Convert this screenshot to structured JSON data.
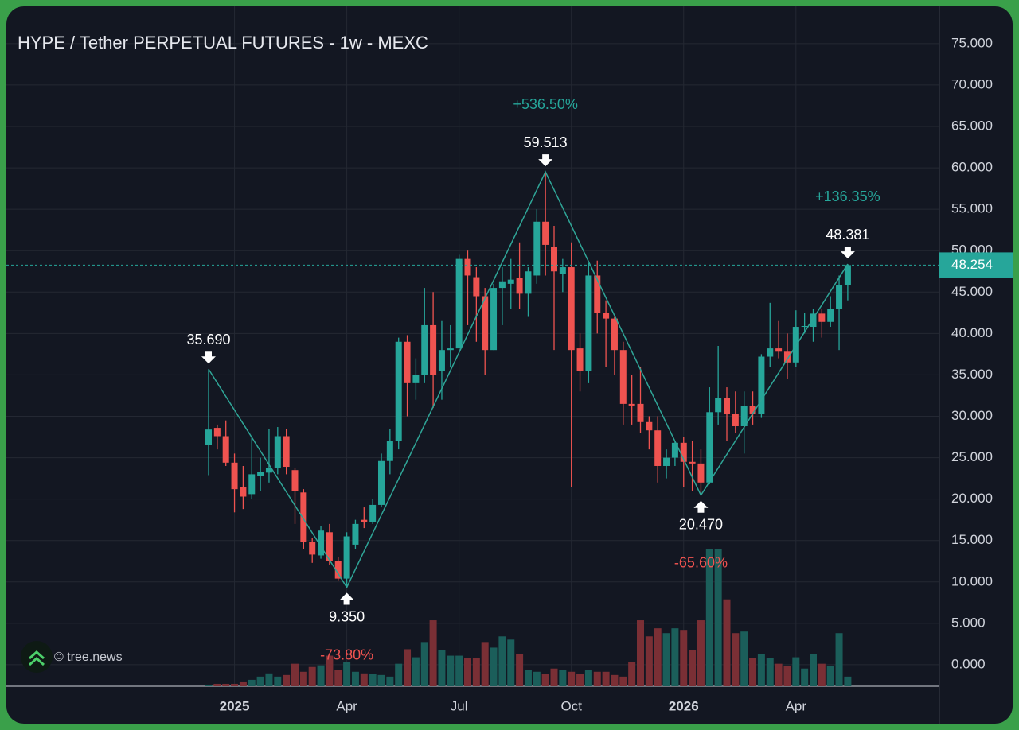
{
  "chart_data": {
    "type": "candlestick",
    "title": "HYPE / Tether PERPETUAL FUTURES - 1w - MEXC",
    "watermark": "© tree.news",
    "categories": [
      null,
      null,
      null,
      "2025",
      null,
      null,
      null,
      null,
      null,
      null,
      null,
      null,
      null,
      null,
      null,
      null,
      "Apr",
      null,
      null,
      null,
      null,
      null,
      null,
      null,
      null,
      null,
      null,
      null,
      null,
      "Jul",
      null,
      null,
      null,
      null,
      null,
      null,
      null,
      null,
      null,
      null,
      null,
      null,
      "Oct",
      null,
      null,
      null,
      null,
      null,
      null,
      null,
      null,
      null,
      null,
      null,
      null,
      "2026",
      null,
      null,
      null,
      null,
      null,
      null,
      null,
      null,
      null,
      null,
      null,
      null,
      "Apr",
      null,
      null,
      null,
      null,
      null,
      null
    ],
    "bold_categories": [
      "2025",
      "2026"
    ],
    "open": [
      26.5,
      28.6,
      27.6,
      24.4,
      21.5,
      20.6,
      22.8,
      23.2,
      23.8,
      27.6,
      23.5,
      20.8,
      14.8,
      13.2,
      16.0,
      12.5,
      10.4,
      14.5,
      17.5,
      17.2,
      19.3,
      24.6,
      27.0,
      39.0,
      34.0,
      35.0,
      41.0,
      35.5,
      38.0,
      38.2,
      49.0,
      46.8,
      44.5,
      38.0,
      45.5,
      46.0,
      46.7,
      44.8,
      47.0,
      53.5,
      50.5,
      47.2,
      48.0,
      38.2,
      35.5,
      47.0,
      42.5,
      41.8,
      38.0,
      31.5,
      31.5,
      29.3,
      28.3,
      24.0,
      25.0,
      26.8,
      24.5,
      24.3,
      22.0,
      30.5,
      32.2,
      30.3,
      28.8,
      31.2,
      30.3,
      37.2,
      38.2,
      37.8,
      36.5,
      40.8,
      40.8,
      42.4,
      41.4,
      43.0,
      45.8
    ],
    "high": [
      35.69,
      29.0,
      29.5,
      25.5,
      24.0,
      27.5,
      25.0,
      28.5,
      28.7,
      28.5,
      23.8,
      21.2,
      15.3,
      16.7,
      17.0,
      13.0,
      16.0,
      17.5,
      19.0,
      20.0,
      25.5,
      28.5,
      39.5,
      39.8,
      37.0,
      45.5,
      45.0,
      41.5,
      41.0,
      49.5,
      50.0,
      48.0,
      45.5,
      46.0,
      48.0,
      49.0,
      51.0,
      48.0,
      55.0,
      59.513,
      53.0,
      49.0,
      51.0,
      40.0,
      48.5,
      48.8,
      44.0,
      42.0,
      39.0,
      35.0,
      36.0,
      30.0,
      30.0,
      26.0,
      27.0,
      27.5,
      27.0,
      26.0,
      33.5,
      38.5,
      33.5,
      33.0,
      33.0,
      33.0,
      37.5,
      43.7,
      41.5,
      40.0,
      42.8,
      42.5,
      43.0,
      43.0,
      44.5,
      47.0,
      48.381
    ],
    "low": [
      22.9,
      26.0,
      24.0,
      18.4,
      18.8,
      20.0,
      21.0,
      22.0,
      23.0,
      23.0,
      17.0,
      14.0,
      12.3,
      12.8,
      12.0,
      10.2,
      9.35,
      14.0,
      16.5,
      17.0,
      19.0,
      23.0,
      26.0,
      30.0,
      32.0,
      34.0,
      31.0,
      32.0,
      36.0,
      38.0,
      41.0,
      39.0,
      35.0,
      38.0,
      41.0,
      43.0,
      43.0,
      42.0,
      46.0,
      47.0,
      38.0,
      45.0,
      21.5,
      33.0,
      34.0,
      40.0,
      36.0,
      35.0,
      29.0,
      29.0,
      28.0,
      26.0,
      22.0,
      22.5,
      24.0,
      21.5,
      21.0,
      20.47,
      21.8,
      29.0,
      27.0,
      28.0,
      25.5,
      29.0,
      29.8,
      36.0,
      37.0,
      34.5,
      36.0,
      40.0,
      39.0,
      39.5,
      40.8,
      38.0,
      44.0
    ],
    "close": [
      28.4,
      27.6,
      24.4,
      21.2,
      20.3,
      23.0,
      23.3,
      23.8,
      27.6,
      23.9,
      21.0,
      14.8,
      13.3,
      16.2,
      12.5,
      10.4,
      15.5,
      17.0,
      17.2,
      19.3,
      24.6,
      27.0,
      39.0,
      34.0,
      35.0,
      41.0,
      35.0,
      38.0,
      38.2,
      49.0,
      47.0,
      44.5,
      38.0,
      45.5,
      46.3,
      46.5,
      44.8,
      47.5,
      53.5,
      50.7,
      47.5,
      48.0,
      38.0,
      35.5,
      47.0,
      42.5,
      41.8,
      38.0,
      31.5,
      31.3,
      29.3,
      28.3,
      24.0,
      25.0,
      26.8,
      24.5,
      24.3,
      22.0,
      30.5,
      32.2,
      30.3,
      28.8,
      31.2,
      30.3,
      37.2,
      38.2,
      37.8,
      36.5,
      40.8,
      40.9,
      42.4,
      41.4,
      43.0,
      45.8,
      48.254
    ],
    "volume": [
      2,
      3,
      3,
      3,
      5,
      8,
      12,
      16,
      12,
      14,
      28,
      18,
      24,
      26,
      38,
      20,
      30,
      18,
      16,
      15,
      14,
      12,
      28,
      46,
      36,
      55,
      82,
      45,
      38,
      38,
      35,
      35,
      55,
      48,
      62,
      58,
      40,
      20,
      18,
      15,
      22,
      20,
      18,
      15,
      20,
      18,
      18,
      14,
      12,
      30,
      82,
      62,
      72,
      66,
      72,
      70,
      45,
      82,
      170,
      170,
      108,
      66,
      68,
      35,
      40,
      35,
      28,
      25,
      36,
      22,
      40,
      28,
      25,
      66,
      12
    ],
    "up_color": "#26a69a",
    "down_color": "#ef5350",
    "volume_up_color": "#1b5e5a",
    "volume_down_color": "#7a2f35",
    "zigzag": {
      "indices": [
        0,
        16,
        39,
        57,
        74
      ],
      "values": [
        35.69,
        9.35,
        59.513,
        20.47,
        48.381
      ],
      "value_labels": [
        "35.690",
        "9.350",
        "59.513",
        "20.470",
        "48.381"
      ],
      "change_labels": [
        "-73.80%",
        "+536.50%",
        "-65.60%",
        "+136.35%"
      ],
      "color": "#2fa597"
    },
    "last_price": {
      "value": 48.254,
      "label": "48.254"
    },
    "ylim": [
      -2.6,
      79.5
    ],
    "yticks": [
      {
        "value": 0,
        "label": "0.000"
      },
      {
        "value": 5,
        "label": "5.000"
      },
      {
        "value": 10,
        "label": "10.000"
      },
      {
        "value": 15,
        "label": "15.000"
      },
      {
        "value": 20,
        "label": "20.000"
      },
      {
        "value": 25,
        "label": "25.000"
      },
      {
        "value": 30,
        "label": "30.000"
      },
      {
        "value": 35,
        "label": "35.000"
      },
      {
        "value": 40,
        "label": "40.000"
      },
      {
        "value": 45,
        "label": "45.000"
      },
      {
        "value": 50,
        "label": "50.000"
      },
      {
        "value": 55,
        "label": "55.000"
      },
      {
        "value": 60,
        "label": "60.000"
      },
      {
        "value": 65,
        "label": "65.000"
      },
      {
        "value": 70,
        "label": "70.000"
      },
      {
        "value": 75,
        "label": "75.000"
      }
    ],
    "grid": true
  }
}
